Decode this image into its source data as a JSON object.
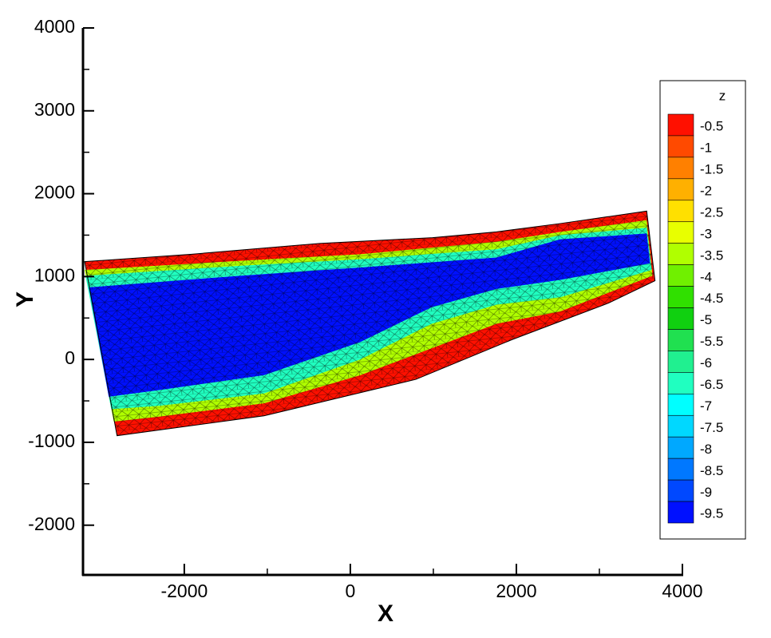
{
  "chart_data": {
    "type": "contour",
    "xlabel": "X",
    "ylabel": "Y",
    "xlim": [
      -3220,
      4000
    ],
    "ylim": [
      -2600,
      4000
    ],
    "xticks": [
      -2000,
      0,
      2000,
      4000
    ],
    "yticks": [
      -2000,
      -1000,
      0,
      1000,
      2000,
      3000,
      4000
    ],
    "legend": {
      "title": "z",
      "levels": [
        -0.5,
        -1,
        -1.5,
        -2,
        -2.5,
        -3,
        -3.5,
        -4,
        -4.5,
        -5,
        -5.5,
        -6,
        -6.5,
        -7,
        -7.5,
        -8,
        -8.5,
        -9,
        -9.5
      ],
      "colors": [
        "#ff1000",
        "#ff4a00",
        "#ff8000",
        "#ffb000",
        "#ffe000",
        "#e8ff00",
        "#b0ff00",
        "#70f000",
        "#30e000",
        "#10d010",
        "#20e050",
        "#20f090",
        "#20ffc0",
        "#00ffff",
        "#00d8ff",
        "#00a8ff",
        "#0078ff",
        "#0048ff",
        "#0010ff"
      ]
    },
    "regions": [
      {
        "z": -0.5,
        "x": [
          -3200,
          -1910,
          -370,
          990,
          1760,
          2530,
          3570,
          3670,
          3110,
          1950,
          790,
          -1040,
          -2810
        ],
        "y": [
          1180,
          1270,
          1400,
          1470,
          1540,
          1640,
          1790,
          950,
          680,
          240,
          -240,
          -680,
          -920
        ]
      },
      {
        "z": -3.5,
        "x": [
          -3200,
          -1330,
          120,
          1760,
          2530,
          3570,
          3640,
          2530,
          1760,
          890,
          120,
          -1040,
          -2300,
          -2850
        ],
        "y": [
          1080,
          1190,
          1270,
          1420,
          1540,
          1680,
          1010,
          580,
          430,
          100,
          -190,
          -530,
          -690,
          -750
        ]
      },
      {
        "z": -6.5,
        "x": [
          -3190,
          -1330,
          120,
          1760,
          2530,
          3570,
          3630,
          2530,
          1760,
          980,
          120,
          -1040,
          -2300,
          -2880
        ],
        "y": [
          1010,
          1130,
          1210,
          1330,
          1500,
          1590,
          1080,
          750,
          660,
          430,
          0,
          -410,
          -560,
          -600
        ]
      },
      {
        "z": -9.5,
        "x": [
          -3150,
          -1330,
          120,
          1760,
          2530,
          3570,
          3610,
          2530,
          1760,
          980,
          120,
          -1040,
          -2300,
          -2910
        ],
        "y": [
          870,
          1010,
          1110,
          1230,
          1450,
          1520,
          1160,
          960,
          850,
          630,
          210,
          -190,
          -370,
          -450
        ]
      }
    ]
  }
}
